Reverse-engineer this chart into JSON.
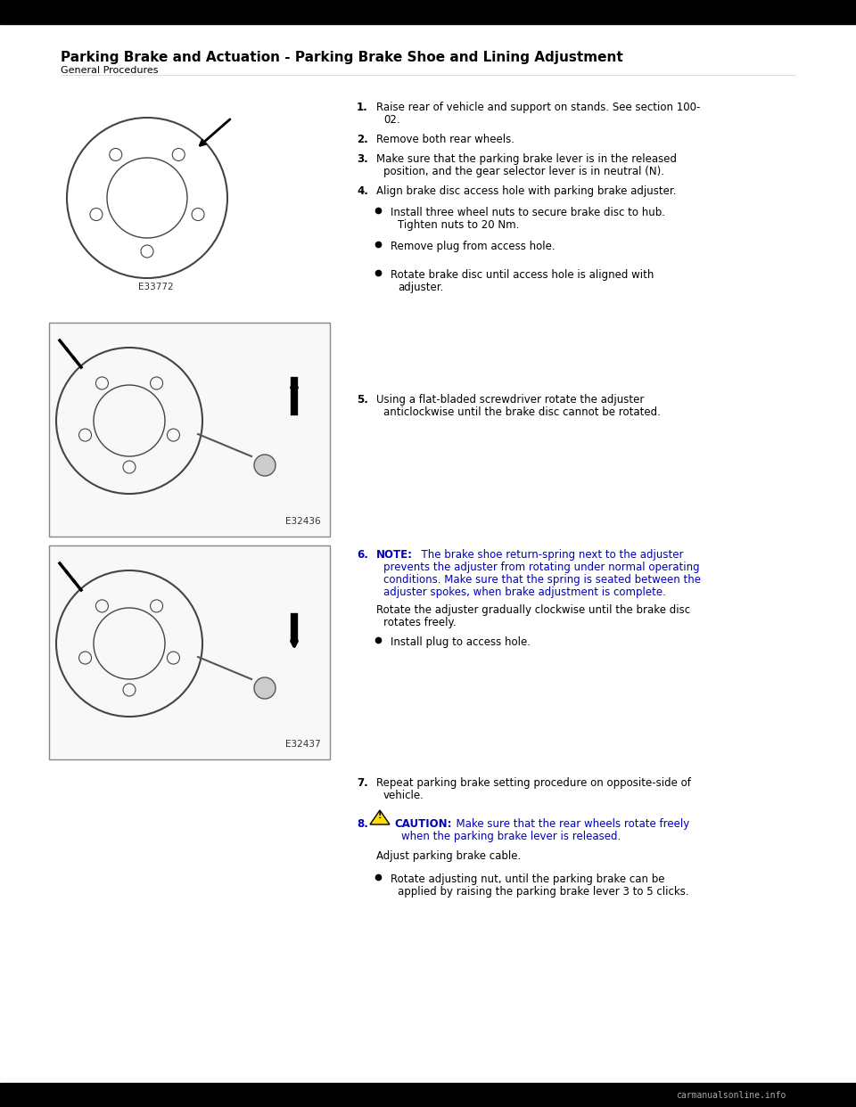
{
  "title": "Parking Brake and Actuation - Parking Brake Shoe and Lining Adjustment",
  "subtitle": "General Procedures",
  "bg_color": "#ffffff",
  "header_bar_color": "#000000",
  "footer_bar_color": "#000000",
  "footer_text": "carmanualsonline.info",
  "image_labels": [
    "E33772",
    "E32436",
    "E32437"
  ],
  "text_color": "#000000",
  "note_color": "#0000bb",
  "caution_color": "#0000bb",
  "title_fontsize": 11,
  "subtitle_fontsize": 8,
  "body_fontsize": 8.5
}
